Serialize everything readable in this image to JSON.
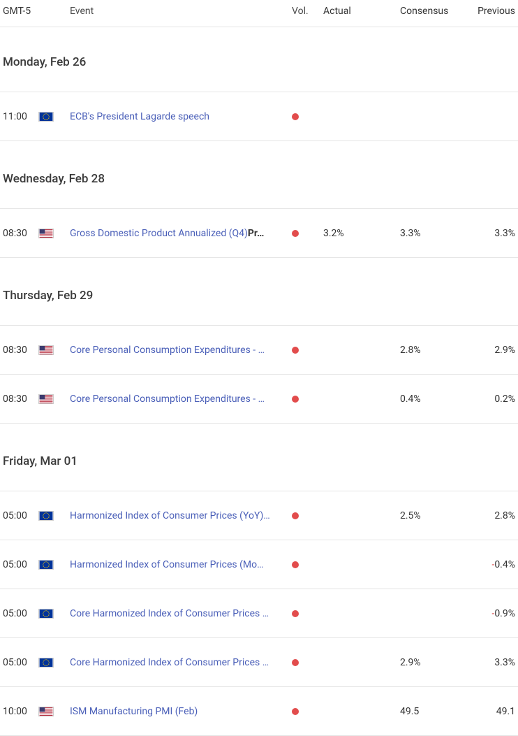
{
  "header": {
    "time": "GMT-5",
    "event": "Event",
    "vol": "Vol.",
    "actual": "Actual",
    "consensus": "Consensus",
    "previous": "Previous"
  },
  "vol_dot_color": "#e24c4c",
  "link_color": "#4a5fb8",
  "neg_color": "#d43b3b",
  "flags": {
    "eu": {
      "bg": "#003399",
      "star": "#ffcc00"
    },
    "us": {
      "stripe_red": "#b22234",
      "stripe_white": "#ffffff",
      "canton": "#3c3b6e"
    }
  },
  "days": [
    {
      "label": "Monday, Feb 26",
      "events": [
        {
          "time": "11:00",
          "flag": "eu",
          "title": "ECB's President Lagarde speech",
          "actual": "",
          "consensus": "",
          "previous": "",
          "prev_neg": false
        }
      ]
    },
    {
      "label": "Wednesday, Feb 28",
      "events": [
        {
          "time": "08:30",
          "flag": "us",
          "title": "Gross Domestic Product Annualized (Q4)",
          "title_extra": "Pr…",
          "actual": "3.2%",
          "consensus": "3.3%",
          "previous": "3.3%",
          "prev_neg": false
        }
      ]
    },
    {
      "label": "Thursday, Feb 29",
      "events": [
        {
          "time": "08:30",
          "flag": "us",
          "title": "Core Personal Consumption Expenditures - …",
          "actual": "",
          "consensus": "2.8%",
          "previous": "2.9%",
          "prev_neg": false
        },
        {
          "time": "08:30",
          "flag": "us",
          "title": "Core Personal Consumption Expenditures - …",
          "actual": "",
          "consensus": "0.4%",
          "previous": "0.2%",
          "prev_neg": false
        }
      ]
    },
    {
      "label": "Friday, Mar 01",
      "events": [
        {
          "time": "05:00",
          "flag": "eu",
          "title": "Harmonized Index of Consumer Prices (YoY)…",
          "actual": "",
          "consensus": "2.5%",
          "previous": "2.8%",
          "prev_neg": false
        },
        {
          "time": "05:00",
          "flag": "eu",
          "title": "Harmonized Index of Consumer Prices (Mo…",
          "actual": "",
          "consensus": "",
          "previous": "-0.4%",
          "prev_neg": true
        },
        {
          "time": "05:00",
          "flag": "eu",
          "title": "Core Harmonized Index of Consumer Prices …",
          "actual": "",
          "consensus": "",
          "previous": "-0.9%",
          "prev_neg": true
        },
        {
          "time": "05:00",
          "flag": "eu",
          "title": "Core Harmonized Index of Consumer Prices …",
          "actual": "",
          "consensus": "2.9%",
          "previous": "3.3%",
          "prev_neg": false
        },
        {
          "time": "10:00",
          "flag": "us",
          "title": "ISM Manufacturing PMI (Feb)",
          "actual": "",
          "consensus": "49.5",
          "previous": "49.1",
          "prev_neg": false
        }
      ]
    }
  ]
}
